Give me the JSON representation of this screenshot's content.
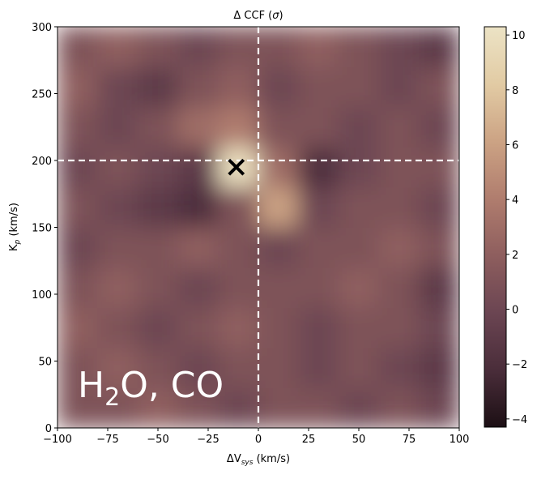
{
  "chart_data": {
    "type": "heatmap",
    "title": [
      "Δ CCF (",
      "σ",
      ")"
    ],
    "xlabel": [
      "ΔV",
      "sys",
      " (km/s)"
    ],
    "ylabel": [
      "K",
      "p",
      " (km/s)"
    ],
    "annotation": [
      "H",
      "2",
      "O, CO"
    ],
    "xlim": [
      -100,
      100
    ],
    "ylim": [
      0,
      300
    ],
    "xticks": [
      {
        "value": -100,
        "label": "−100"
      },
      {
        "value": -75,
        "label": "−75"
      },
      {
        "value": -50,
        "label": "−50"
      },
      {
        "value": -25,
        "label": "−25"
      },
      0,
      25,
      50,
      75,
      100
    ],
    "yticks": [
      0,
      50,
      100,
      150,
      200,
      250,
      300
    ],
    "x": [
      -90,
      -70,
      -50,
      -30,
      -10,
      10,
      30,
      50,
      70,
      90
    ],
    "y": [
      15,
      45,
      75,
      105,
      135,
      165,
      195,
      225,
      255,
      285
    ],
    "z": [
      [
        1,
        1,
        2,
        1,
        0,
        1,
        1,
        0,
        1,
        0
      ],
      [
        1,
        2,
        1,
        0,
        1,
        1,
        0,
        1,
        0,
        -1
      ],
      [
        2,
        1,
        0,
        1,
        2,
        1,
        0,
        1,
        1,
        0
      ],
      [
        1,
        2,
        1,
        0,
        1,
        1,
        1,
        2,
        1,
        -1
      ],
      [
        0,
        1,
        1,
        2,
        1,
        0,
        1,
        1,
        2,
        1
      ],
      [
        1,
        0,
        -1,
        -2,
        1,
        6,
        0,
        1,
        1,
        0
      ],
      [
        0,
        1,
        0,
        -1,
        10,
        3,
        -2,
        0,
        1,
        1
      ],
      [
        1,
        0,
        1,
        3,
        4,
        1,
        1,
        0,
        1,
        0
      ],
      [
        2,
        0,
        -1,
        1,
        2,
        0,
        1,
        1,
        0,
        1
      ],
      [
        1,
        2,
        1,
        0,
        1,
        1,
        2,
        1,
        0,
        -1
      ]
    ],
    "zlim": [
      -4.3,
      10.3
    ],
    "zticks": [
      {
        "value": -4,
        "label": "−4"
      },
      {
        "value": -2,
        "label": "−2"
      },
      0,
      2,
      4,
      6,
      8,
      10
    ],
    "colors": [
      "#1c0f14",
      "#4a2d3a",
      "#6b4552",
      "#8e5e5e",
      "#b07d6e",
      "#cca384",
      "#e2cba4",
      "#ece3c5"
    ],
    "reference_lines": {
      "x": 0,
      "y": 200,
      "color": "#ffffff"
    },
    "marker": {
      "x": -11,
      "y": 195,
      "color": "#000000"
    }
  }
}
